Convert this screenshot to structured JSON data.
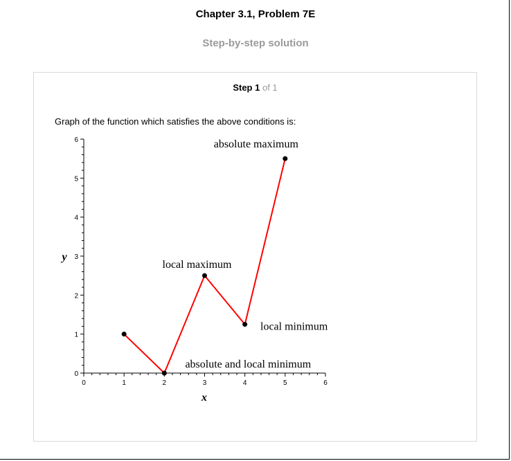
{
  "header": {
    "title": "Chapter 3.1, Problem 7E",
    "subtitle": "Step-by-step solution"
  },
  "step": {
    "label": "Step 1",
    "of_text": "of 1",
    "description": "Graph of the function which satisfies the above conditions is:"
  },
  "colors": {
    "line": "#ff0000",
    "points": "#000000",
    "subtitle": "#9a9a9a",
    "card_border": "#d9d9d9"
  },
  "chart_data": {
    "type": "line",
    "xlabel": "x",
    "ylabel": "y",
    "xlim": [
      0,
      6
    ],
    "ylim": [
      0,
      6
    ],
    "x_ticks": [
      "0",
      "1",
      "2",
      "3",
      "4",
      "5",
      "6"
    ],
    "y_ticks": [
      "0",
      "1",
      "2",
      "3",
      "4",
      "5",
      "6"
    ],
    "grid": false,
    "series": [
      {
        "x": [
          1,
          2,
          3,
          4,
          5
        ],
        "y": [
          1,
          0,
          2.5,
          1.25,
          5.5
        ]
      }
    ],
    "annotations": [
      {
        "text": "absolute maximum",
        "x": 5,
        "y": 5.5
      },
      {
        "text": "local maximum",
        "x": 3,
        "y": 2.5
      },
      {
        "text": "local minimum",
        "x": 4,
        "y": 1.25
      },
      {
        "text": "absolute and local minimum",
        "x": 2,
        "y": 0
      }
    ]
  }
}
